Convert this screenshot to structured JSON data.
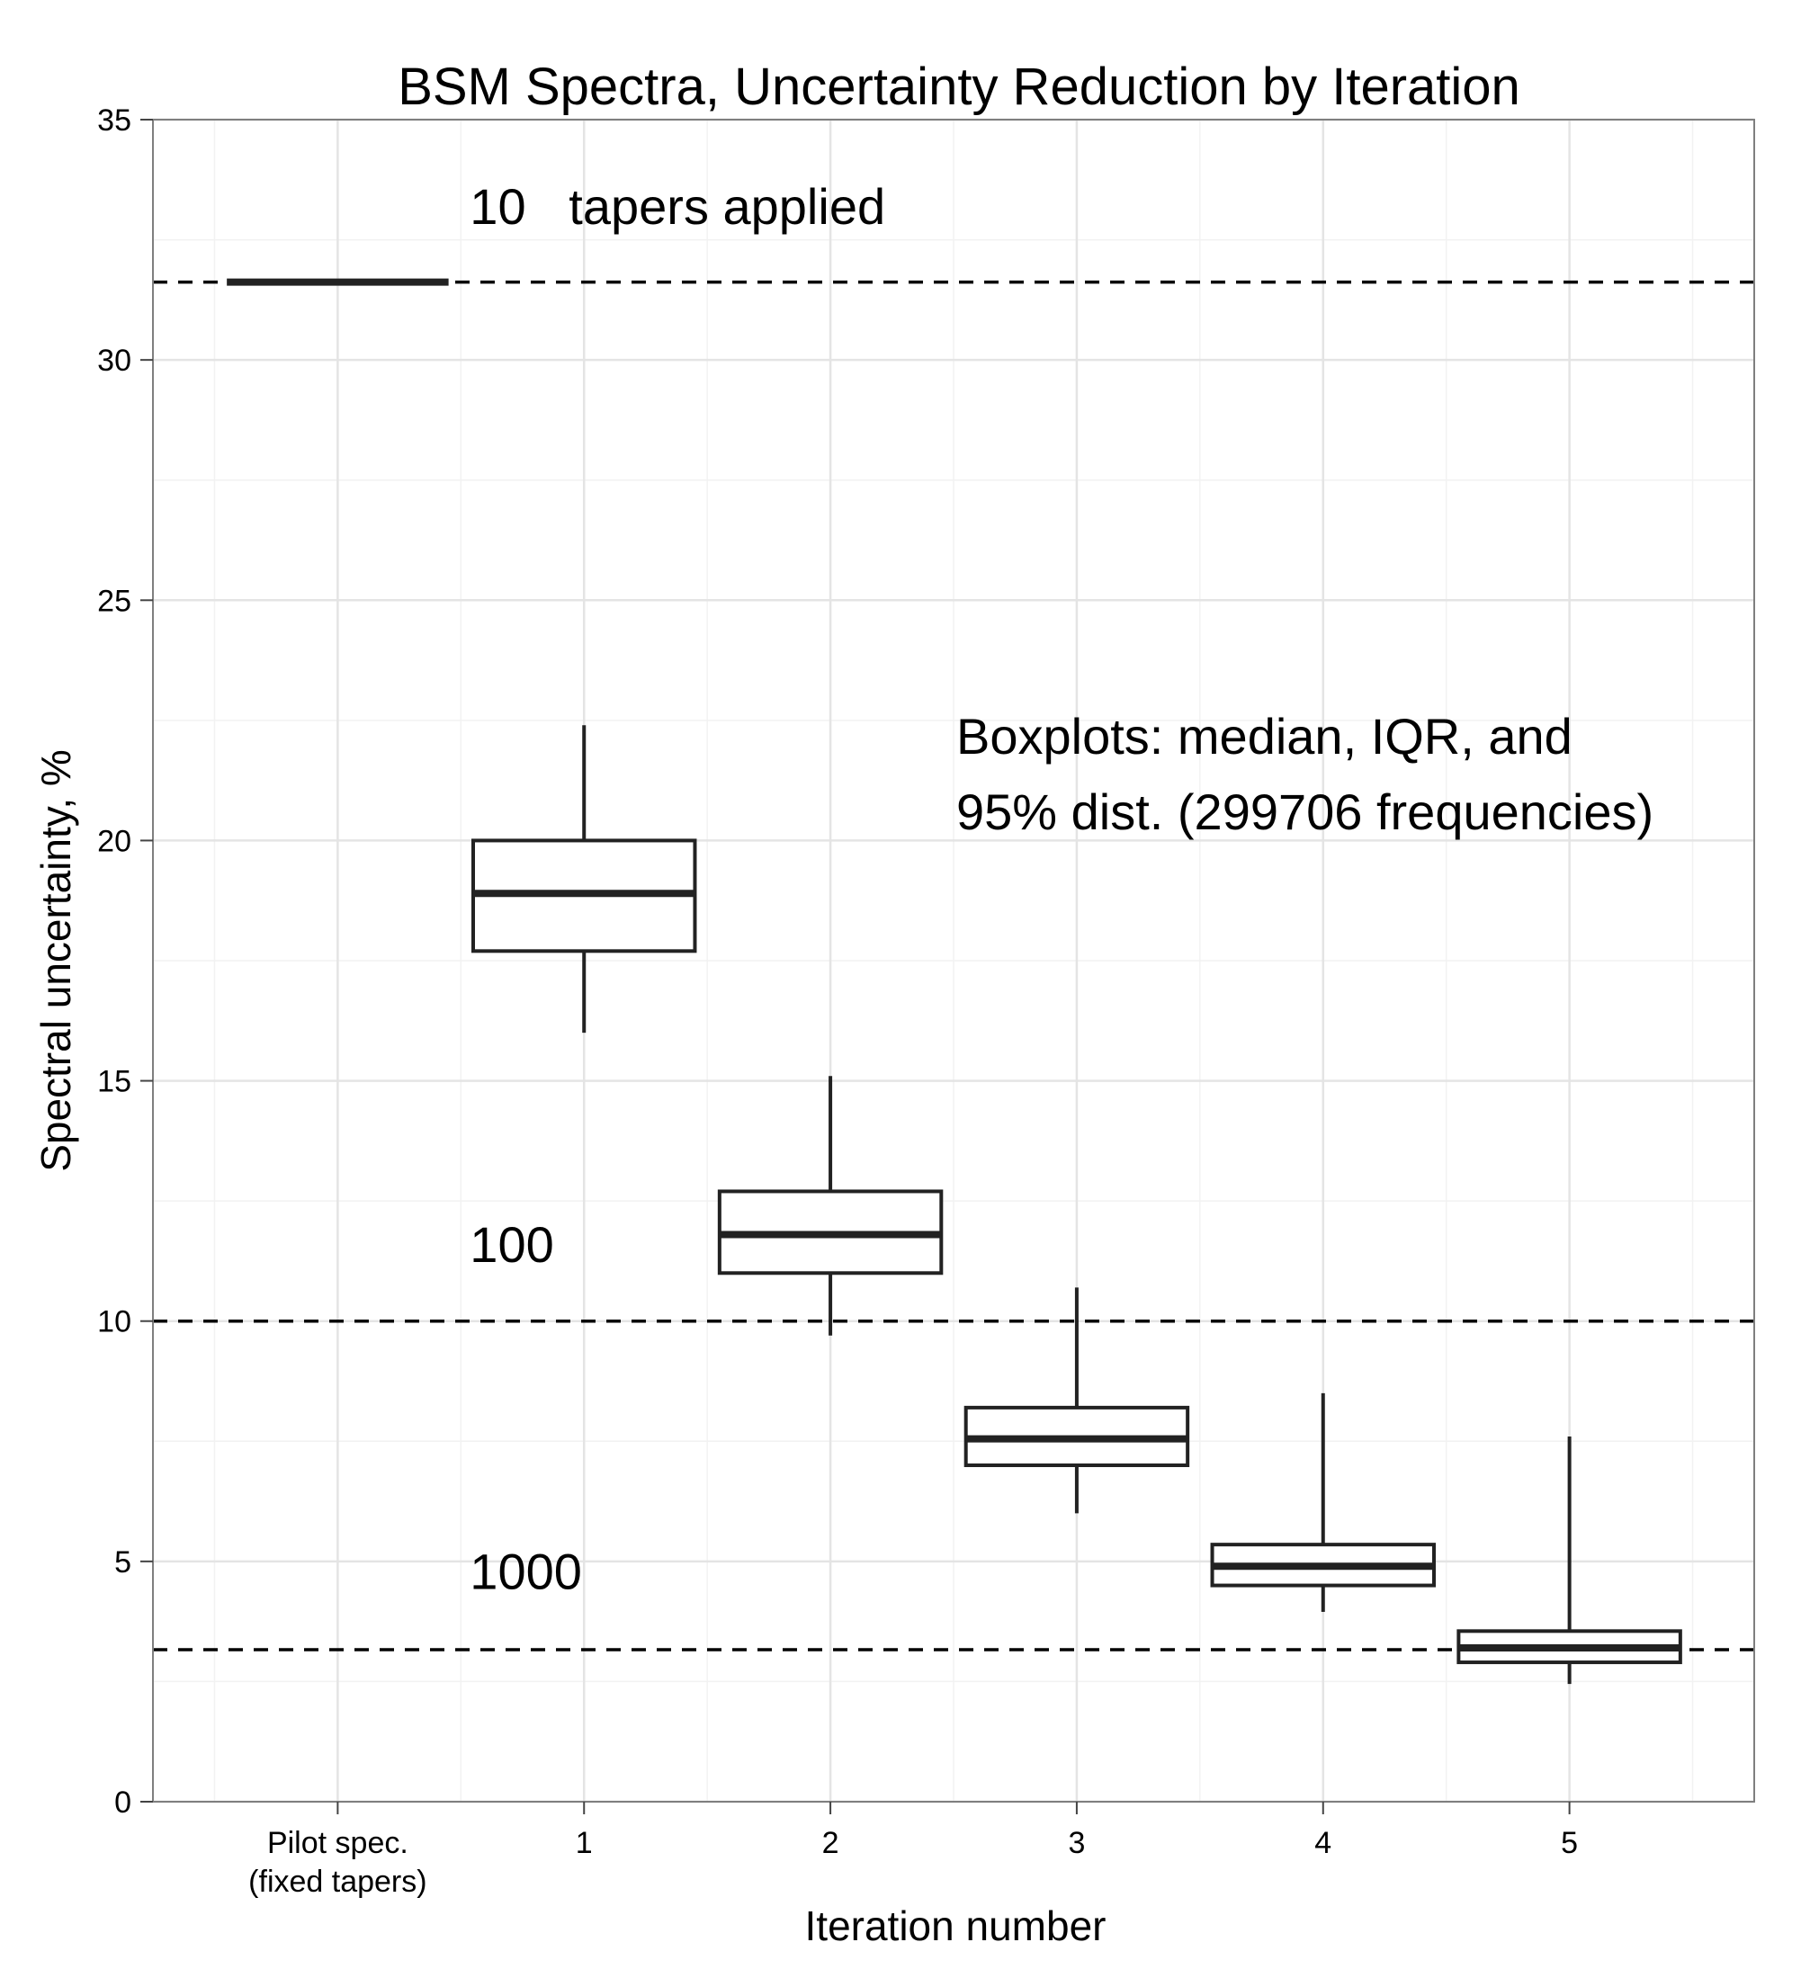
{
  "chart_data": {
    "type": "boxplot",
    "title": "BSM Spectra, Uncertainty Reduction by Iteration",
    "xlabel": "Iteration number",
    "ylabel": "Spectral uncertainty, %",
    "ylim": [
      0,
      35
    ],
    "yticks": [
      0,
      5,
      10,
      15,
      20,
      25,
      30,
      35
    ],
    "grid": true,
    "categories": [
      {
        "label_line1": "Pilot spec.",
        "label_line2": "(fixed tapers)"
      },
      {
        "label_line1": "1",
        "label_line2": ""
      },
      {
        "label_line1": "2",
        "label_line2": ""
      },
      {
        "label_line1": "3",
        "label_line2": ""
      },
      {
        "label_line1": "4",
        "label_line2": ""
      },
      {
        "label_line1": "5",
        "label_line2": ""
      }
    ],
    "boxes": [
      {
        "low": 31.62,
        "q1": 31.62,
        "median": 31.62,
        "q3": 31.62,
        "high": 31.62
      },
      {
        "low": 16.0,
        "q1": 17.7,
        "median": 18.9,
        "q3": 20.0,
        "high": 22.4
      },
      {
        "low": 9.7,
        "q1": 11.0,
        "median": 11.8,
        "q3": 12.7,
        "high": 15.1
      },
      {
        "low": 6.0,
        "q1": 7.0,
        "median": 7.55,
        "q3": 8.2,
        "high": 10.7
      },
      {
        "low": 3.95,
        "q1": 4.5,
        "median": 4.9,
        "q3": 5.35,
        "high": 8.5
      },
      {
        "low": 2.45,
        "q1": 2.9,
        "median": 3.2,
        "q3": 3.55,
        "high": 7.6
      }
    ],
    "reference_lines": [
      {
        "y": 31.62,
        "label": "10",
        "label_y": 33.2
      },
      {
        "y": 10.0,
        "label": "100",
        "label_y": 11.6
      },
      {
        "y": 3.162,
        "label": "1000",
        "label_y": 4.8
      }
    ],
    "annotations": {
      "tapers_suffix": "tapers applied",
      "box_legend_line1": "Boxplots: median, IQR, and",
      "box_legend_line2": "95% dist. (299706 frequencies)"
    }
  }
}
